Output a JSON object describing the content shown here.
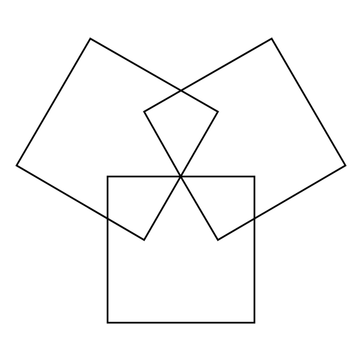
{
  "figure": {
    "stroke_color": "#000000",
    "background_color": "#ffffff",
    "shapes": [
      {
        "kind": "square",
        "name": "bottom-square"
      },
      {
        "kind": "square",
        "name": "left-rotated-square"
      },
      {
        "kind": "square",
        "name": "right-rotated-square"
      }
    ]
  }
}
